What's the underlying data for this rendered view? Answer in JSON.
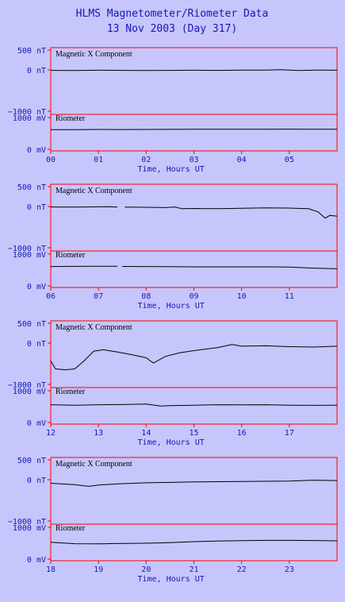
{
  "title_line1": "HLMS Magnetometer/Riometer Data",
  "title_line2": "13 Nov 2003 (Day 317)",
  "colors": {
    "background": "#c6c6fc",
    "frame": "#ff0000",
    "text": "#1616b4",
    "trace": "#000000"
  },
  "chart_data": [
    {
      "type": "line",
      "hours": [
        0,
        6
      ],
      "xticks": [
        "00",
        "01",
        "02",
        "03",
        "04",
        "05"
      ],
      "xlabel": "Time, Hours UT",
      "mag": {
        "title": "Magnetic X Component",
        "yticks": [
          "500 nT",
          "0 nT",
          "−1000 nT"
        ],
        "ylim": [
          -1000,
          500
        ],
        "x": [
          0,
          0.5,
          1,
          1.5,
          2,
          2.5,
          3,
          3.5,
          4,
          4.5,
          4.8,
          5.2,
          5.6,
          6
        ],
        "y": [
          -10,
          -12,
          -8,
          -10,
          -12,
          -10,
          -8,
          -10,
          -6,
          -4,
          5,
          -12,
          -6,
          -8
        ]
      },
      "riometer": {
        "title": "Riometer",
        "yticks": [
          "1000 mV",
          "0 mV"
        ],
        "ylim": [
          -50,
          1100
        ],
        "x": [
          0,
          0.5,
          1,
          1.5,
          2,
          2.5,
          3,
          3.5,
          4,
          4.5,
          5,
          5.5,
          6
        ],
        "y": [
          620,
          620,
          625,
          622,
          625,
          628,
          630,
          630,
          632,
          630,
          635,
          630,
          630
        ]
      }
    },
    {
      "type": "line",
      "hours": [
        6,
        12
      ],
      "xticks": [
        "06",
        "07",
        "08",
        "09",
        "10",
        "11"
      ],
      "xlabel": "Time, Hours UT",
      "mag": {
        "title": "Magnetic X Component",
        "yticks": [
          "500 nT",
          "0 nT",
          "−1000 nT"
        ],
        "ylim": [
          -1000,
          500
        ],
        "x": [
          6,
          6.5,
          7,
          7.2,
          7.4,
          null,
          7.55,
          8,
          8.4,
          8.6,
          8.75,
          9,
          9.5,
          10,
          10.5,
          11,
          11.4,
          11.6,
          11.75,
          11.85,
          12
        ],
        "y": [
          -10,
          -12,
          -8,
          -6,
          -12,
          null,
          -14,
          -18,
          -25,
          -10,
          -50,
          -45,
          -50,
          -40,
          -30,
          -35,
          -50,
          -120,
          -260,
          -200,
          -220
        ]
      },
      "riometer": {
        "title": "Riometer",
        "yticks": [
          "1000 mV",
          "0 mV"
        ],
        "ylim": [
          -50,
          1100
        ],
        "x": [
          6,
          6.5,
          7,
          7.4,
          null,
          7.5,
          8,
          8.5,
          9,
          9.5,
          10,
          10.5,
          11,
          11.5,
          12
        ],
        "y": [
          610,
          615,
          618,
          620,
          null,
          612,
          610,
          605,
          600,
          600,
          600,
          600,
          595,
          560,
          540
        ]
      }
    },
    {
      "type": "line",
      "hours": [
        12,
        18
      ],
      "xticks": [
        "12",
        "13",
        "14",
        "15",
        "16",
        "17"
      ],
      "xlabel": "Time, Hours UT",
      "mag": {
        "title": "Magnetic X Component",
        "yticks": [
          "500 nT",
          "0 nT",
          "−1000 nT"
        ],
        "ylim": [
          -1000,
          500
        ],
        "x": [
          12,
          12.1,
          12.3,
          12.5,
          12.7,
          12.9,
          13.1,
          13.4,
          13.7,
          14,
          14.15,
          14.4,
          14.7,
          15,
          15.5,
          15.8,
          16,
          16.5,
          17,
          17.5,
          18
        ],
        "y": [
          -400,
          -580,
          -600,
          -580,
          -400,
          -180,
          -150,
          -200,
          -260,
          -330,
          -450,
          -300,
          -220,
          -170,
          -100,
          -30,
          -70,
          -60,
          -80,
          -90,
          -70
        ]
      },
      "riometer": {
        "title": "Riometer",
        "yticks": [
          "1000 mV",
          "0 mV"
        ],
        "ylim": [
          -50,
          1100
        ],
        "x": [
          12,
          12.5,
          13,
          13.5,
          14,
          14.3,
          14.5,
          15,
          15.5,
          16,
          16.5,
          17,
          17.5,
          18
        ],
        "y": [
          560,
          545,
          560,
          565,
          580,
          520,
          530,
          545,
          560,
          555,
          560,
          545,
          540,
          545
        ]
      }
    },
    {
      "type": "line",
      "hours": [
        18,
        24
      ],
      "xticks": [
        "18",
        "19",
        "20",
        "21",
        "22",
        "23"
      ],
      "xlabel": "Time, Hours UT",
      "mag": {
        "title": "Magnetic X Component",
        "yticks": [
          "500 nT",
          "0 nT",
          "−1000 nT"
        ],
        "ylim": [
          -1000,
          500
        ],
        "x": [
          18,
          18.5,
          18.8,
          19,
          19.5,
          20,
          20.5,
          21,
          21.5,
          22,
          22.5,
          23,
          23.5,
          24
        ],
        "y": [
          -80,
          -110,
          -150,
          -120,
          -90,
          -70,
          -60,
          -50,
          -45,
          -40,
          -35,
          -30,
          -10,
          -20
        ]
      },
      "riometer": {
        "title": "Riometer",
        "yticks": [
          "1000 mV",
          "0 mV"
        ],
        "ylim": [
          -50,
          1100
        ],
        "x": [
          18,
          18.5,
          19,
          19.5,
          20,
          20.5,
          21,
          21.5,
          22,
          22.5,
          23,
          23.5,
          24
        ],
        "y": [
          530,
          485,
          480,
          495,
          500,
          520,
          550,
          570,
          580,
          590,
          590,
          585,
          575
        ]
      }
    }
  ]
}
